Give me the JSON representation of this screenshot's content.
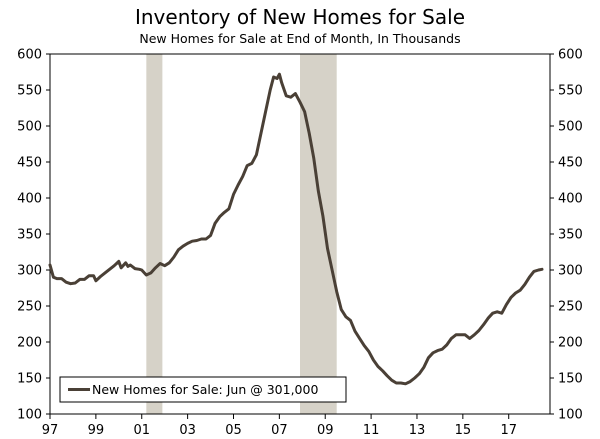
{
  "chart_data": {
    "type": "line",
    "title": "Inventory of New Homes for Sale",
    "subtitle": "New Homes for Sale at End of Month, In Thousands",
    "xlabel": "",
    "ylabel": "",
    "xlim": [
      1997.0,
      2018.8
    ],
    "ylim": [
      100,
      600
    ],
    "y_ticks": [
      100,
      150,
      200,
      250,
      300,
      350,
      400,
      450,
      500,
      550,
      600
    ],
    "x_ticks": [
      {
        "value": 1997,
        "label": "97"
      },
      {
        "value": 1999,
        "label": "99"
      },
      {
        "value": 2001,
        "label": "01"
      },
      {
        "value": 2003,
        "label": "03"
      },
      {
        "value": 2005,
        "label": "05"
      },
      {
        "value": 2007,
        "label": "07"
      },
      {
        "value": 2009,
        "label": "09"
      },
      {
        "value": 2011,
        "label": "11"
      },
      {
        "value": 2013,
        "label": "13"
      },
      {
        "value": 2015,
        "label": "15"
      },
      {
        "value": 2017,
        "label": "17"
      }
    ],
    "recessions": [
      {
        "start": 2001.2,
        "end": 2001.9
      },
      {
        "start": 2007.9,
        "end": 2009.5
      }
    ],
    "legend": {
      "label": "New Homes for Sale: Jun @ 301,000",
      "position": "bottom-left"
    },
    "colors": {
      "line": "#4a4036",
      "recession": "#d6d2c8",
      "axis": "#000000"
    },
    "series": [
      {
        "name": "New Homes for Sale",
        "x": [
          1997.0,
          1997.15,
          1997.3,
          1997.5,
          1997.7,
          1997.9,
          1998.1,
          1998.3,
          1998.5,
          1998.7,
          1998.9,
          1999.0,
          1999.2,
          1999.4,
          1999.6,
          1999.8,
          2000.0,
          2000.1,
          2000.3,
          2000.4,
          2000.5,
          2000.7,
          2000.9,
          2001.0,
          2001.2,
          2001.4,
          2001.6,
          2001.8,
          2002.0,
          2002.2,
          2002.4,
          2002.6,
          2002.8,
          2003.0,
          2003.2,
          2003.4,
          2003.6,
          2003.8,
          2004.0,
          2004.2,
          2004.4,
          2004.6,
          2004.8,
          2005.0,
          2005.2,
          2005.4,
          2005.6,
          2005.8,
          2006.0,
          2006.2,
          2006.4,
          2006.6,
          2006.75,
          2006.9,
          2007.0,
          2007.1,
          2007.3,
          2007.5,
          2007.7,
          2007.9,
          2008.1,
          2008.3,
          2008.5,
          2008.7,
          2008.9,
          2009.1,
          2009.3,
          2009.5,
          2009.7,
          2009.9,
          2010.1,
          2010.3,
          2010.5,
          2010.7,
          2010.9,
          2011.1,
          2011.3,
          2011.5,
          2011.7,
          2011.9,
          2012.1,
          2012.3,
          2012.5,
          2012.7,
          2012.9,
          2013.1,
          2013.3,
          2013.5,
          2013.7,
          2013.9,
          2014.1,
          2014.3,
          2014.5,
          2014.7,
          2014.9,
          2015.1,
          2015.3,
          2015.5,
          2015.7,
          2015.9,
          2016.1,
          2016.3,
          2016.5,
          2016.7,
          2016.9,
          2017.1,
          2017.3,
          2017.5,
          2017.7,
          2017.9,
          2018.1,
          2018.3,
          2018.45
        ],
        "values": [
          307,
          290,
          288,
          288,
          283,
          281,
          282,
          287,
          287,
          292,
          292,
          285,
          291,
          296,
          301,
          306,
          312,
          303,
          310,
          305,
          307,
          302,
          301,
          300,
          293,
          296,
          303,
          309,
          306,
          310,
          318,
          328,
          333,
          337,
          340,
          341,
          343,
          343,
          348,
          365,
          374,
          380,
          385,
          405,
          418,
          430,
          445,
          448,
          460,
          490,
          520,
          550,
          568,
          566,
          572,
          560,
          542,
          540,
          545,
          533,
          520,
          490,
          455,
          410,
          375,
          330,
          300,
          270,
          245,
          235,
          230,
          215,
          205,
          195,
          187,
          175,
          166,
          160,
          153,
          147,
          143,
          143,
          142,
          145,
          150,
          156,
          165,
          178,
          185,
          188,
          190,
          196,
          205,
          210,
          210,
          210,
          205,
          210,
          216,
          224,
          233,
          240,
          242,
          240,
          252,
          262,
          268,
          272,
          280,
          290,
          298,
          300,
          301
        ]
      }
    ]
  }
}
